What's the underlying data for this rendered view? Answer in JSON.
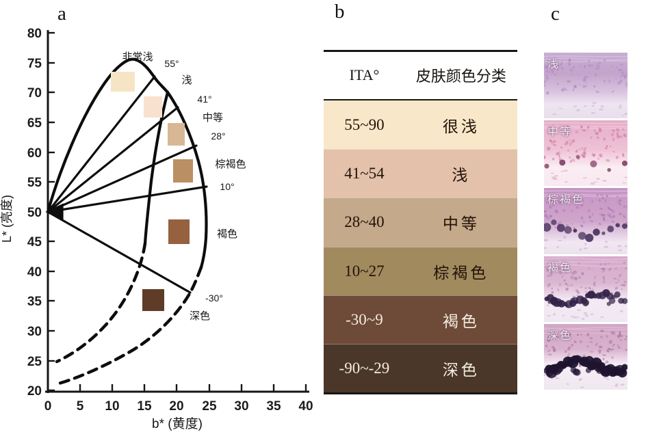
{
  "panels": {
    "a": "a",
    "b": "b",
    "c": "c"
  },
  "panel_a": {
    "xlabel": "b* (黄度)",
    "ylabel": "L* (亮度)",
    "y_ticks": [
      "80",
      "75",
      "70",
      "65",
      "60",
      "55",
      "50",
      "45",
      "40",
      "35",
      "30",
      "25",
      "20"
    ],
    "x_ticks": [
      "0",
      "5",
      "10",
      "15",
      "20",
      "25",
      "30",
      "35",
      "40"
    ],
    "labels": {
      "very_light": "非常浅",
      "light": "浅",
      "medium": "中等",
      "tan": "棕褐色",
      "brown": "褐色",
      "dark": "深色",
      "a55": "55°",
      "a41": "41°",
      "a28": "28°",
      "a10": "10°",
      "am30": "-30°"
    },
    "swatch_colors": [
      "#f6e5c5",
      "#f8e1ce",
      "#d8b795",
      "#ba8f63",
      "#96613f",
      "#5e3c28"
    ]
  },
  "panel_b": {
    "headers": [
      "ITA°",
      "皮肤颜色分类"
    ],
    "rows": [
      {
        "ita": "55~90",
        "name": "很浅",
        "bg": "#f9e7c9",
        "fg": "#201308"
      },
      {
        "ita": "41~54",
        "name": "浅",
        "bg": "#e3c1ab",
        "fg": "#201308"
      },
      {
        "ita": "28~40",
        "name": "中等",
        "bg": "#c4a98a",
        "fg": "#201308"
      },
      {
        "ita": "10~27",
        "name": "棕褐色",
        "bg": "#a28a5f",
        "fg": "#201308"
      },
      {
        "ita": "-30~9",
        "name": "褐色",
        "bg": "#6e4a38",
        "fg": "#f4ece2"
      },
      {
        "ita": "-90~-29",
        "name": "深色",
        "bg": "#4a3729",
        "fg": "#f4ece2"
      }
    ]
  },
  "panel_c": {
    "items": [
      {
        "label": "浅"
      },
      {
        "label": "中等"
      },
      {
        "label": "棕褐色"
      },
      {
        "label": "褐色"
      },
      {
        "label": "深色"
      }
    ]
  },
  "chart_data": [
    {
      "type": "scatter",
      "title": "",
      "xlabel": "b* (黄度)",
      "ylabel": "L* (亮度)",
      "xlim": [
        0,
        40
      ],
      "ylim": [
        20,
        80
      ],
      "x_ticks": [
        0,
        5,
        10,
        15,
        20,
        25,
        30,
        35,
        40
      ],
      "y_ticks": [
        80,
        75,
        70,
        65,
        60,
        55,
        50,
        45,
        40,
        35,
        30,
        25,
        20
      ],
      "grid": false,
      "legend_position": "none",
      "fan_origin": {
        "b_star": 0,
        "L_star": 50
      },
      "ita_boundary_angles_deg": [
        55,
        41,
        28,
        10,
        -30
      ],
      "categories": [
        "非常浅",
        "浅",
        "中等",
        "棕褐色",
        "褐色",
        "深色"
      ],
      "swatch_points": [
        {
          "label": "非常浅",
          "b_star": 11.6,
          "L_star": 71.8,
          "color": "#f6e5c5"
        },
        {
          "label": "浅",
          "b_star": 16.3,
          "L_star": 67.6,
          "color": "#f8e1ce"
        },
        {
          "label": "中等",
          "b_star": 19.9,
          "L_star": 63.0,
          "color": "#d8b795"
        },
        {
          "label": "棕褐色",
          "b_star": 21.0,
          "L_star": 56.9,
          "color": "#ba8f63"
        },
        {
          "label": "褐色",
          "b_star": 20.4,
          "L_star": 46.7,
          "color": "#96613f"
        },
        {
          "label": "深色",
          "b_star": 16.3,
          "L_star": 35.2,
          "color": "#5e3c28"
        }
      ]
    },
    {
      "type": "table",
      "columns": [
        "ITA°",
        "皮肤颜色分类"
      ],
      "rows": [
        [
          "55~90",
          "很浅"
        ],
        [
          "41~54",
          "浅"
        ],
        [
          "28~40",
          "中等"
        ],
        [
          "10~27",
          "棕褐色"
        ],
        [
          "-30~9",
          "褐色"
        ],
        [
          "-90~-29",
          "深色"
        ]
      ]
    }
  ]
}
